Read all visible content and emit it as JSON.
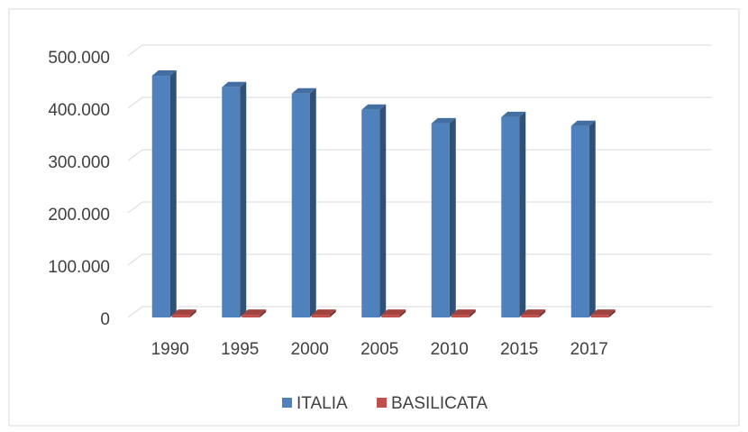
{
  "chart_data": {
    "type": "bar3d",
    "categories": [
      "1990",
      "1995",
      "2000",
      "2005",
      "2010",
      "2015",
      "2017"
    ],
    "series": [
      {
        "name": "ITALIA",
        "color": "#4f81bd",
        "values": [
          462000,
          440000,
          428000,
          397000,
          371000,
          383000,
          366000
        ]
      },
      {
        "name": "BASILICATA",
        "color": "#c0504d",
        "values": [
          5000,
          5000,
          5000,
          5000,
          5000,
          5000,
          5000
        ]
      }
    ],
    "ylim": [
      0,
      500000
    ],
    "yticks": [
      0,
      {
        "value": 100000,
        "label": "100.000"
      },
      {
        "value": 200000,
        "label": "200.000"
      },
      {
        "value": 300000,
        "label": "300.000"
      },
      {
        "value": 400000,
        "label": "400.000"
      },
      {
        "value": 500000,
        "label": "500.000"
      }
    ],
    "grid": true,
    "legend": "bottom"
  }
}
